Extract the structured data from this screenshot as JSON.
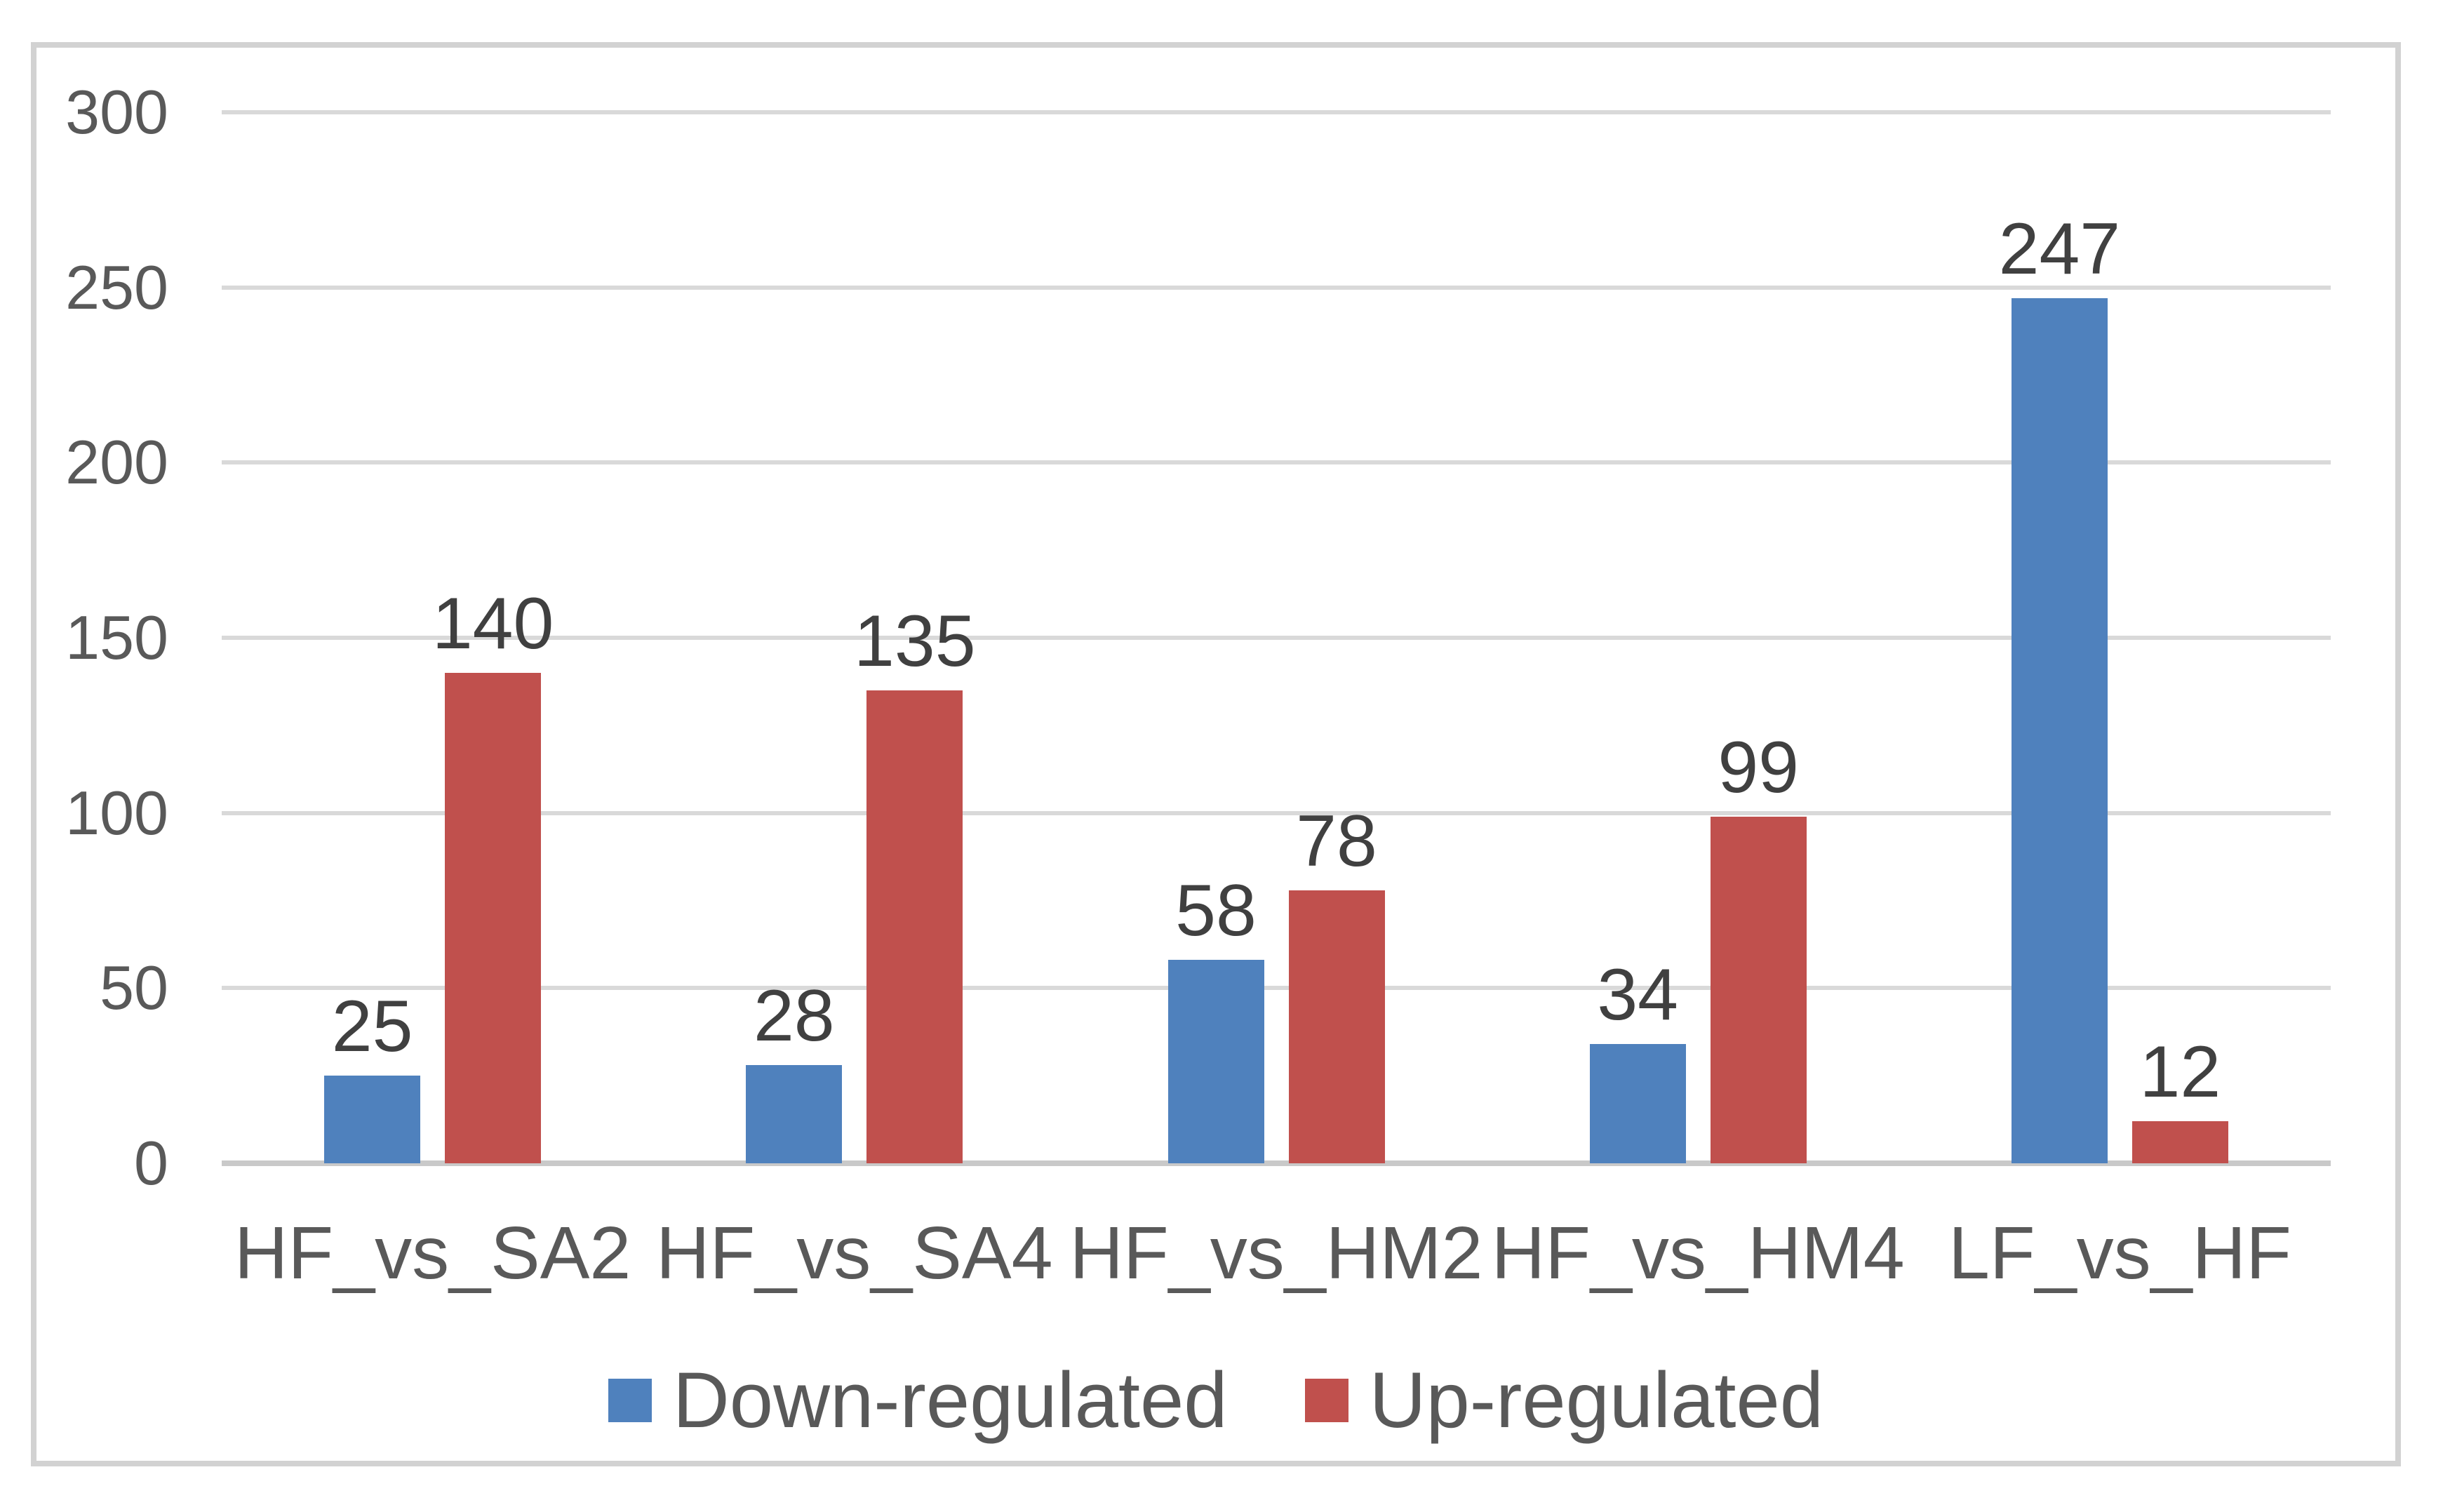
{
  "chart_data": {
    "type": "bar",
    "title": "",
    "xlabel": "",
    "ylabel": "",
    "categories": [
      "HF_vs_SA2",
      "HF_vs_SA4",
      "HF_vs_HM2",
      "HF_vs_HM4",
      "LF_vs_HF"
    ],
    "series": [
      {
        "name": "Down-regulated",
        "color": "#4f81bd",
        "values": [
          25,
          28,
          58,
          34,
          247
        ]
      },
      {
        "name": "Up-regulated",
        "color": "#c0504d",
        "values": [
          140,
          135,
          78,
          99,
          12
        ]
      }
    ],
    "data_labels": [
      [
        "25",
        "28",
        "58",
        "34",
        "247"
      ],
      [
        "140",
        "135",
        "78",
        "99",
        "12"
      ]
    ],
    "ylim": [
      0,
      300
    ],
    "yticks": [
      "0",
      "50",
      "100",
      "150",
      "200",
      "250",
      "300"
    ],
    "grid": true,
    "legend_position": "bottom"
  },
  "style_colors": {
    "gridline": "#d9d9d9",
    "axis_line": "#c9c9c9",
    "frame_border": "#d2d2d2",
    "tick_text": "#595959",
    "data_label_text": "#404040",
    "background": "#ffffff"
  }
}
